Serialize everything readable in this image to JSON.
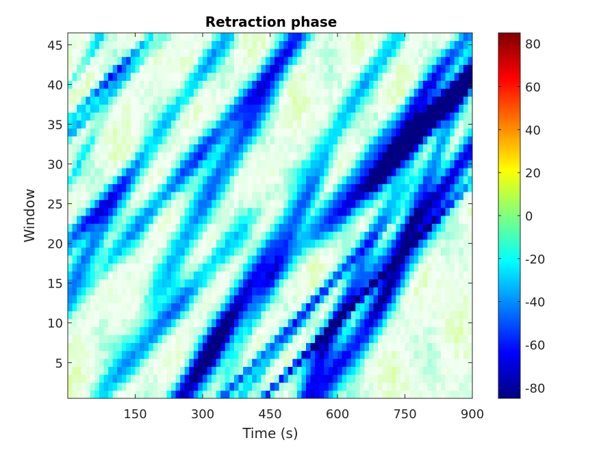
{
  "chart_data": {
    "type": "heatmap",
    "title": "Retraction phase",
    "xlabel": "Time (s)",
    "ylabel": "Window",
    "xlim": [
      0,
      900
    ],
    "ylim": [
      0.5,
      46.5
    ],
    "x_ticks": [
      150,
      300,
      450,
      600,
      750,
      900
    ],
    "y_ticks": [
      5,
      10,
      15,
      20,
      25,
      30,
      35,
      40,
      45
    ],
    "colorbar": {
      "colormap": "jet",
      "clim": [
        -85,
        85
      ],
      "ticks": [
        -80,
        -60,
        -40,
        -20,
        0,
        20,
        40,
        60,
        80
      ]
    },
    "grid": false,
    "n_windows": 46,
    "time_step_s": 10
  }
}
